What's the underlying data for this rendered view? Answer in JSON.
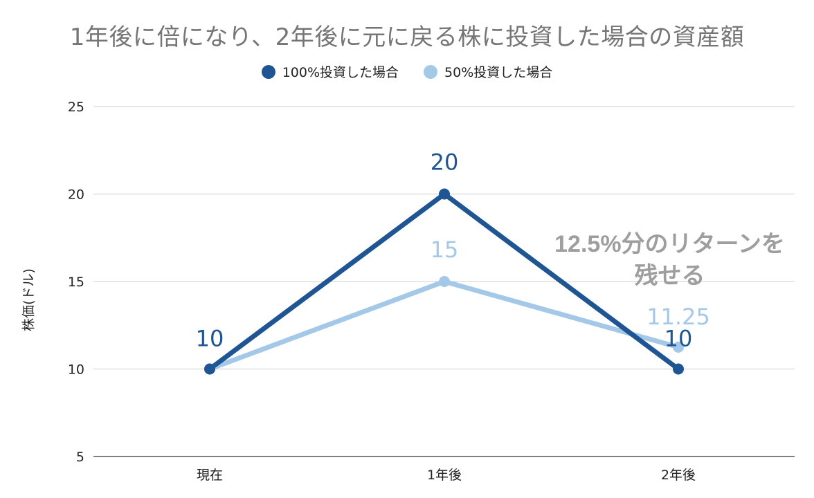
{
  "chart_data": {
    "type": "line",
    "title": "1年後に倍になり、2年後に元に戻る株に投資した場合の資産額",
    "xlabel": "",
    "ylabel": "株価(ドル)",
    "categories": [
      "現在",
      "1年後",
      "2年後"
    ],
    "ylim": [
      5,
      25
    ],
    "yticks": [
      5,
      10,
      15,
      20,
      25
    ],
    "grid": true,
    "legend_position": "top",
    "series": [
      {
        "name": "100%投資した場合",
        "values": [
          10,
          20,
          10
        ],
        "value_labels": [
          "10",
          "20",
          "10"
        ],
        "color": "#1f5592"
      },
      {
        "name": "50%投資した場合",
        "values": [
          10,
          15,
          11.25
        ],
        "value_labels": [
          "10",
          "15",
          "11.25"
        ],
        "color": "#a4c8e8"
      }
    ],
    "annotation": {
      "line1": "12.5%分のリターンを",
      "line2": "残せる",
      "color": "#9e9e9e"
    }
  }
}
